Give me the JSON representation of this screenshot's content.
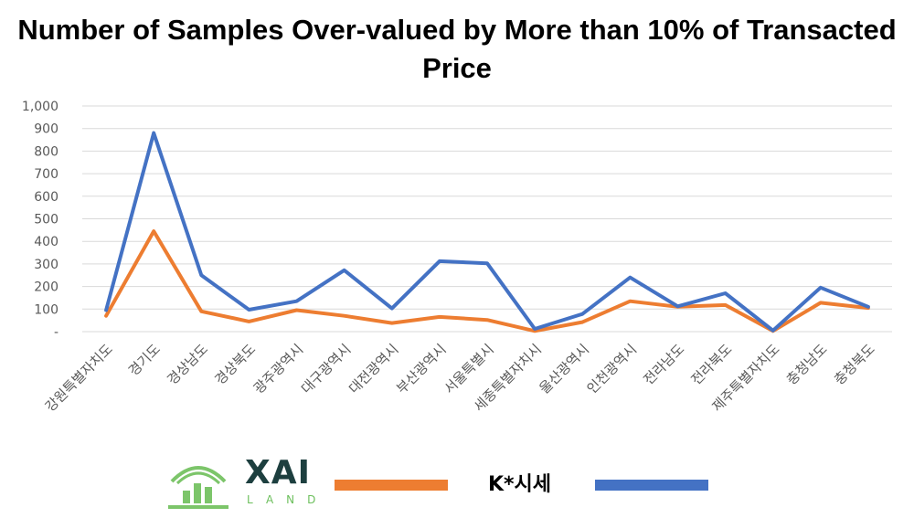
{
  "chart_data": {
    "type": "line",
    "title": "Number of Samples Over-valued by More than 10% of Transacted Price",
    "categories": [
      "강원특별자치도",
      "경기도",
      "경상남도",
      "경상북도",
      "광주광역시",
      "대구광역시",
      "대전광역시",
      "부산광역시",
      "서울특별시",
      "세종특별자치시",
      "울산광역시",
      "인천광역시",
      "전라남도",
      "전라북도",
      "제주특별자치도",
      "충청남도",
      "충청북도"
    ],
    "series": [
      {
        "name": "",
        "color": "#ED7D31",
        "values": [
          70,
          445,
          90,
          45,
          95,
          70,
          38,
          65,
          52,
          3,
          42,
          135,
          110,
          118,
          3,
          128,
          105
        ]
      },
      {
        "name": "K*시세",
        "color": "#4472C4",
        "values": [
          95,
          880,
          250,
          97,
          135,
          272,
          103,
          312,
          303,
          12,
          78,
          240,
          112,
          170,
          5,
          195,
          110
        ]
      }
    ],
    "ylim": [
      0,
      1000
    ],
    "yticks": [
      "-",
      "100",
      "200",
      "300",
      "400",
      "500",
      "600",
      "700",
      "800",
      "900",
      "1,000"
    ],
    "grid": true
  },
  "legend": {
    "logo_text": "XAI",
    "logo_sub": "LAND",
    "label": "K*시세"
  }
}
